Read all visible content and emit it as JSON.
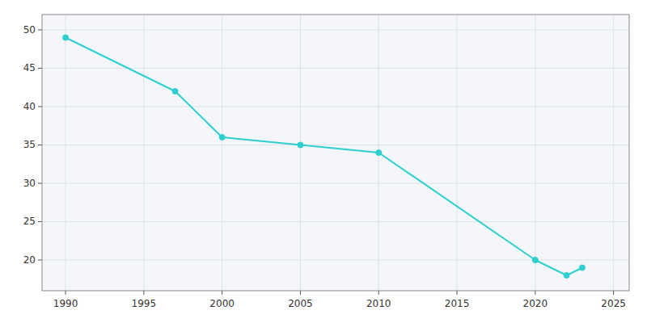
{
  "chart_data": {
    "type": "line",
    "x": [
      1990,
      1997,
      2000,
      2005,
      2010,
      2020,
      2022,
      2023
    ],
    "values": [
      49,
      42,
      36,
      35,
      34,
      20,
      18,
      19
    ],
    "color": "#2DCFCF",
    "marker": "circle",
    "xlim": [
      1988.5,
      2026
    ],
    "ylim": [
      16,
      52
    ],
    "xticks": [
      1990,
      1995,
      2000,
      2005,
      2010,
      2015,
      2020,
      2025
    ],
    "yticks": [
      20,
      25,
      30,
      35,
      40,
      45,
      50
    ],
    "grid": true
  }
}
